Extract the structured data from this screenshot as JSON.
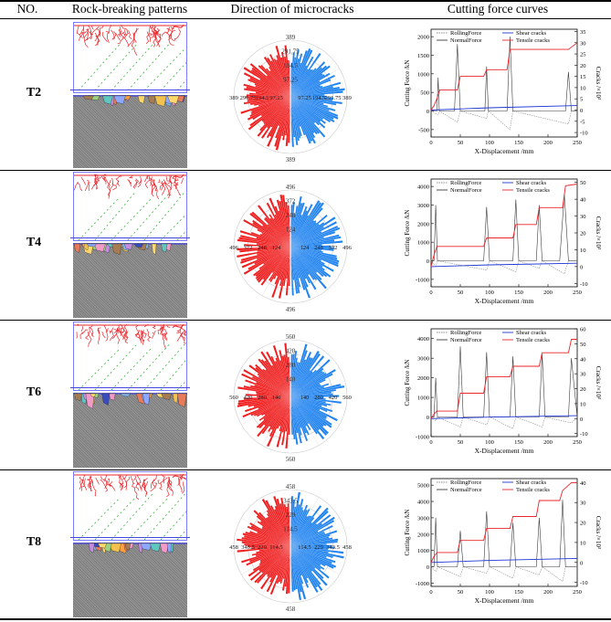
{
  "headers": {
    "no": "NO.",
    "patterns": "Rock-breaking patterns",
    "direction": "Direction of microcracks",
    "cutting": "Cutting force curves"
  },
  "rows": [
    {
      "id": "T2",
      "rose_rings": [
        "389",
        "291.75",
        "194.5",
        "97.25"
      ],
      "rose_right": [
        "97.25",
        "194.5",
        "291.75",
        "389"
      ],
      "rose_left": [
        "389",
        "291.75",
        "194.5",
        "97.25"
      ],
      "chart": {
        "y_ticks": [
          "2000",
          "1500",
          "1000",
          "500",
          "0",
          "-500"
        ],
        "y_vals": [
          2000,
          1500,
          1000,
          500,
          0,
          -500
        ],
        "ylim": [
          -700,
          2200
        ],
        "y2_ticks": [
          "35",
          "30",
          "25",
          "20",
          "15",
          "10",
          "5",
          "0",
          "-5",
          "-10"
        ],
        "y2lim": [
          -12,
          36
        ],
        "x_ticks": [
          "0",
          "50",
          "100",
          "150",
          "200",
          "250"
        ]
      }
    },
    {
      "id": "T4",
      "rose_rings": [
        "496",
        "372",
        "248",
        "124"
      ],
      "rose_right": [
        "124",
        "248",
        "372",
        "496"
      ],
      "rose_left": [
        "496",
        "372",
        "248",
        "124"
      ],
      "chart": {
        "y_ticks": [
          "4000",
          "3000",
          "2000",
          "1000",
          "0",
          "-1000"
        ],
        "y_vals": [
          4000,
          3000,
          2000,
          1000,
          0,
          -1000
        ],
        "ylim": [
          -1400,
          4400
        ],
        "y2_ticks": [
          "50",
          "40",
          "30",
          "20",
          "10",
          "0",
          "-10"
        ],
        "y2lim": [
          -12,
          52
        ],
        "x_ticks": [
          "0",
          "50",
          "100",
          "150",
          "200",
          "250"
        ]
      }
    },
    {
      "id": "T6",
      "rose_rings": [
        "560",
        "420",
        "280",
        "140"
      ],
      "rose_right": [
        "140",
        "280",
        "420",
        "560"
      ],
      "rose_left": [
        "560",
        "420",
        "280",
        "140"
      ],
      "chart": {
        "y_ticks": [
          "4000",
          "3000",
          "2000",
          "1000",
          "0",
          "-1000"
        ],
        "y_vals": [
          4000,
          3000,
          2000,
          1000,
          0,
          -1000
        ],
        "ylim": [
          -1000,
          4500
        ],
        "y2_ticks": [
          "60",
          "50",
          "40",
          "30",
          "20",
          "10",
          "0",
          "-10"
        ],
        "y2lim": [
          -12,
          60
        ],
        "x_ticks": [
          "0",
          "50",
          "100",
          "150",
          "200",
          "250"
        ]
      }
    },
    {
      "id": "T8",
      "rose_rings": [
        "458",
        "343.5",
        "229",
        "114.5"
      ],
      "rose_right": [
        "114.5",
        "229",
        "343.5",
        "458"
      ],
      "rose_left": [
        "458",
        "343.5",
        "229",
        "114.5"
      ],
      "chart": {
        "y_ticks": [
          "5000",
          "4000",
          "3000",
          "2000",
          "1000",
          "0",
          "-1000"
        ],
        "y_vals": [
          5000,
          4000,
          3000,
          2000,
          1000,
          0,
          -1000
        ],
        "ylim": [
          -1200,
          5400
        ],
        "y2_ticks": [
          "40",
          "30",
          "20",
          "10",
          "0",
          "-10"
        ],
        "y2lim": [
          -12,
          42
        ],
        "x_ticks": [
          "0",
          "50",
          "100",
          "150",
          "200",
          "250"
        ]
      }
    }
  ],
  "chart_labels": {
    "ylabel": "Cutting Force /kN",
    "y2label": "Cracks /×10³",
    "xlabel": "X-Displacement /mm",
    "legend_rolling": "RollingForce",
    "legend_normal": "NormalForce",
    "legend_shear": "Shear cracks",
    "legend_tensile": "Tensile cracks"
  },
  "chart_data": [
    {
      "type": "line",
      "title": "T2",
      "xlabel": "X-Displacement /mm",
      "ylabel": "Cutting Force /kN",
      "y2label": "Cracks /×10³",
      "xlim": [
        0,
        250
      ],
      "ylim": [
        -700,
        2200
      ],
      "y2lim": [
        -12,
        36
      ],
      "series": [
        {
          "name": "Tensile cracks",
          "axis": "right",
          "x": [
            0,
            5,
            10,
            15,
            45,
            50,
            90,
            95,
            130,
            135,
            235,
            240,
            250
          ],
          "y": [
            0,
            2,
            5,
            9,
            9,
            15,
            15,
            18,
            18,
            27,
            27,
            28,
            30
          ]
        },
        {
          "name": "Shear cracks",
          "axis": "right",
          "x": [
            0,
            100,
            250
          ],
          "y": [
            0,
            1,
            2
          ]
        },
        {
          "name": "NormalForce",
          "axis": "left",
          "x": [
            0,
            10,
            12,
            14,
            40,
            45,
            50,
            92,
            95,
            98,
            130,
            135,
            140,
            230,
            235,
            240,
            250
          ],
          "y": [
            0,
            0,
            900,
            0,
            0,
            1800,
            0,
            0,
            1200,
            0,
            0,
            2000,
            0,
            0,
            1050,
            0,
            0
          ]
        },
        {
          "name": "RollingForce",
          "axis": "left",
          "x": [
            0,
            12,
            14,
            45,
            50,
            95,
            98,
            135,
            140,
            235,
            240,
            250
          ],
          "y": [
            0,
            -100,
            0,
            -300,
            0,
            -200,
            0,
            -500,
            0,
            -350,
            0,
            0
          ]
        }
      ]
    },
    {
      "type": "line",
      "title": "T4",
      "xlabel": "X-Displacement /mm",
      "ylabel": "Cutting Force /kN",
      "y2label": "Cracks /×10³",
      "xlim": [
        0,
        250
      ],
      "ylim": [
        -1400,
        4400
      ],
      "y2lim": [
        -12,
        52
      ],
      "series": [
        {
          "name": "Tensile cracks",
          "axis": "right",
          "x": [
            0,
            5,
            10,
            90,
            95,
            140,
            145,
            180,
            185,
            225,
            230,
            250
          ],
          "y": [
            0,
            7,
            12,
            12,
            17,
            17,
            25,
            25,
            35,
            35,
            48,
            49
          ]
        },
        {
          "name": "Shear cracks",
          "axis": "right",
          "x": [
            0,
            100,
            250
          ],
          "y": [
            0,
            1,
            2
          ]
        },
        {
          "name": "NormalForce",
          "axis": "left",
          "x": [
            0,
            5,
            8,
            11,
            90,
            95,
            100,
            140,
            145,
            150,
            180,
            185,
            190,
            220,
            228,
            235,
            250
          ],
          "y": [
            0,
            0,
            3000,
            0,
            0,
            2900,
            0,
            0,
            3300,
            0,
            0,
            3000,
            0,
            0,
            3600,
            0,
            0
          ]
        },
        {
          "name": "RollingForce",
          "axis": "left",
          "x": [
            0,
            8,
            11,
            95,
            100,
            145,
            150,
            185,
            190,
            228,
            235,
            250
          ],
          "y": [
            0,
            -300,
            0,
            -500,
            0,
            -600,
            0,
            -400,
            0,
            -700,
            0,
            0
          ]
        }
      ]
    },
    {
      "type": "line",
      "title": "T6",
      "xlabel": "X-Displacement /mm",
      "ylabel": "Cutting Force /kN",
      "y2label": "Cracks /×10³",
      "xlim": [
        0,
        250
      ],
      "ylim": [
        -1000,
        4500
      ],
      "y2lim": [
        -12,
        60
      ],
      "series": [
        {
          "name": "Tensile cracks",
          "axis": "right",
          "x": [
            0,
            5,
            10,
            45,
            50,
            90,
            95,
            135,
            140,
            185,
            190,
            235,
            240,
            250
          ],
          "y": [
            0,
            3,
            5,
            5,
            17,
            17,
            28,
            28,
            35,
            35,
            44,
            44,
            53,
            53
          ]
        },
        {
          "name": "Shear cracks",
          "axis": "right",
          "x": [
            0,
            100,
            250
          ],
          "y": [
            0,
            1,
            2
          ]
        },
        {
          "name": "NormalForce",
          "axis": "left",
          "x": [
            0,
            5,
            8,
            11,
            45,
            50,
            55,
            90,
            95,
            100,
            135,
            140,
            145,
            185,
            190,
            195,
            235,
            240,
            250
          ],
          "y": [
            0,
            0,
            2000,
            0,
            0,
            3600,
            0,
            0,
            3300,
            0,
            0,
            3100,
            0,
            0,
            3200,
            0,
            0,
            3000,
            0
          ]
        },
        {
          "name": "RollingForce",
          "axis": "left",
          "x": [
            0,
            8,
            11,
            50,
            55,
            95,
            100,
            140,
            145,
            190,
            195,
            240,
            250
          ],
          "y": [
            0,
            -200,
            0,
            -500,
            0,
            -400,
            0,
            -600,
            0,
            -500,
            0,
            -300,
            0
          ]
        }
      ]
    },
    {
      "type": "line",
      "title": "T8",
      "xlabel": "X-Displacement /mm",
      "ylabel": "Cutting Force /kN",
      "y2label": "Cracks /×10³",
      "xlim": [
        0,
        250
      ],
      "ylim": [
        -1200,
        5400
      ],
      "y2lim": [
        -12,
        42
      ],
      "series": [
        {
          "name": "Tensile cracks",
          "axis": "right",
          "x": [
            0,
            5,
            10,
            45,
            50,
            90,
            95,
            135,
            140,
            180,
            185,
            220,
            225,
            240,
            250
          ],
          "y": [
            0,
            3,
            5,
            5,
            11,
            11,
            17,
            17,
            23,
            23,
            31,
            31,
            36,
            40,
            40
          ]
        },
        {
          "name": "Shear cracks",
          "axis": "right",
          "x": [
            0,
            100,
            250
          ],
          "y": [
            0,
            1,
            2
          ]
        },
        {
          "name": "NormalForce",
          "axis": "left",
          "x": [
            0,
            5,
            8,
            11,
            45,
            50,
            55,
            90,
            95,
            100,
            135,
            140,
            145,
            180,
            185,
            190,
            220,
            225,
            230,
            250
          ],
          "y": [
            0,
            0,
            3000,
            0,
            0,
            2200,
            0,
            0,
            3400,
            0,
            0,
            2700,
            0,
            0,
            3000,
            0,
            0,
            4100,
            0,
            0
          ]
        },
        {
          "name": "RollingForce",
          "axis": "left",
          "x": [
            0,
            8,
            11,
            50,
            55,
            95,
            100,
            140,
            145,
            185,
            190,
            225,
            230,
            250
          ],
          "y": [
            0,
            -300,
            0,
            -600,
            0,
            -400,
            0,
            -700,
            0,
            -500,
            0,
            -900,
            0,
            0
          ]
        }
      ]
    }
  ]
}
